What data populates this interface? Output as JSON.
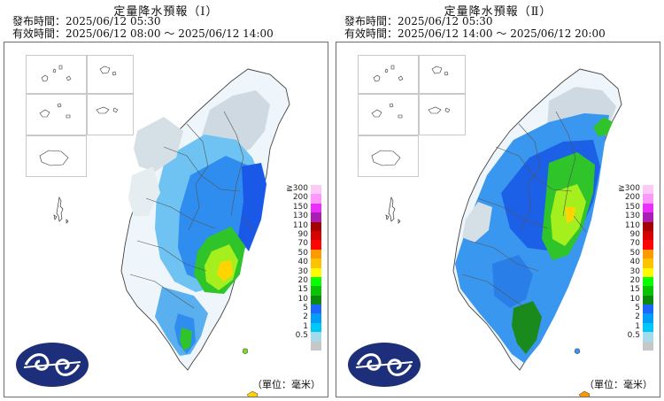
{
  "panels": [
    {
      "title": "定量降水預報（Ⅰ）",
      "issued": "發布時間：2025/06/12 05:30",
      "valid": "有效時間：2025/06/12 08:00 ～ 2025/06/12 14:00"
    },
    {
      "title": "定量降水預報（Ⅱ）",
      "issued": "發布時間：2025/06/12 05:30",
      "valid": "有效時間：2025/06/12 14:00 ～ 2025/06/12 20:00"
    }
  ],
  "legend": {
    "labels": [
      "≧300",
      "200",
      "150",
      "130",
      "110",
      "90",
      "70",
      "50",
      "40",
      "30",
      "20",
      "15",
      "10",
      "5",
      "2",
      "1",
      "0.5"
    ],
    "colors": [
      "#fdcaf8",
      "#fe97fb",
      "#ea2ffb",
      "#aa1fb3",
      "#a40200",
      "#d50300",
      "#fc0502",
      "#fe9900",
      "#fec300",
      "#fefb00",
      "#07ff00",
      "#0bc305",
      "#0c8a0d",
      "#1d66fe",
      "#029ef5",
      "#00c7fa",
      "#a3dbec",
      "#c7c7c7"
    ]
  },
  "unit": "（單位：毫米）",
  "map_icons": [
    "taiwan-map",
    "county-boundaries",
    "offshore-islands",
    "cwa-logo"
  ]
}
